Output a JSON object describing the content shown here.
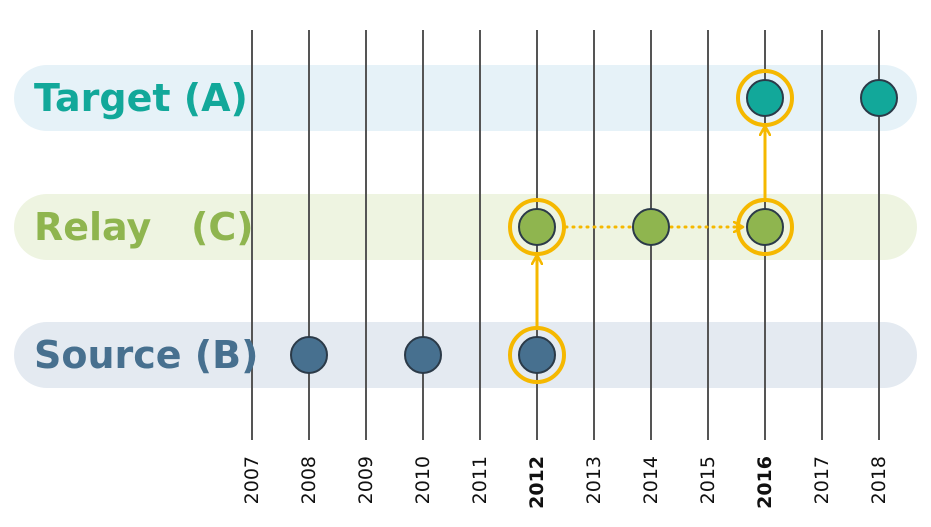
{
  "rows": [
    {
      "id": "target",
      "label": "Target (A)",
      "color": "#12a89a",
      "band": "#e6f2f8",
      "events": [
        2016,
        2018
      ]
    },
    {
      "id": "relay",
      "label": "Relay   (C)",
      "color": "#8fb54f",
      "band": "#eef4e1",
      "events": [
        2012,
        2014,
        2016
      ]
    },
    {
      "id": "source",
      "label": "Source (B)",
      "color": "#47708f",
      "band": "#e4eaf1",
      "events": [
        2008,
        2010,
        2012
      ]
    }
  ],
  "years": [
    "2007",
    "2008",
    "2009",
    "2010",
    "2011",
    "2012",
    "2013",
    "2014",
    "2015",
    "2016",
    "2017",
    "2018"
  ],
  "highlight_years": [
    "2012",
    "2016"
  ],
  "highlight_color": "#f5b800",
  "highlighted_events": [
    {
      "row": "source",
      "year": 2012
    },
    {
      "row": "relay",
      "year": 2012
    },
    {
      "row": "relay",
      "year": 2016
    },
    {
      "row": "target",
      "year": 2016
    }
  ],
  "links": [
    {
      "from": {
        "row": "source",
        "year": 2012
      },
      "to": {
        "row": "relay",
        "year": 2012
      },
      "style": "solid"
    },
    {
      "from": {
        "row": "relay",
        "year": 2012
      },
      "to": {
        "row": "relay",
        "year": 2016
      },
      "style": "dotted"
    },
    {
      "from": {
        "row": "relay",
        "year": 2016
      },
      "to": {
        "row": "target",
        "year": 2016
      },
      "style": "solid"
    }
  ]
}
